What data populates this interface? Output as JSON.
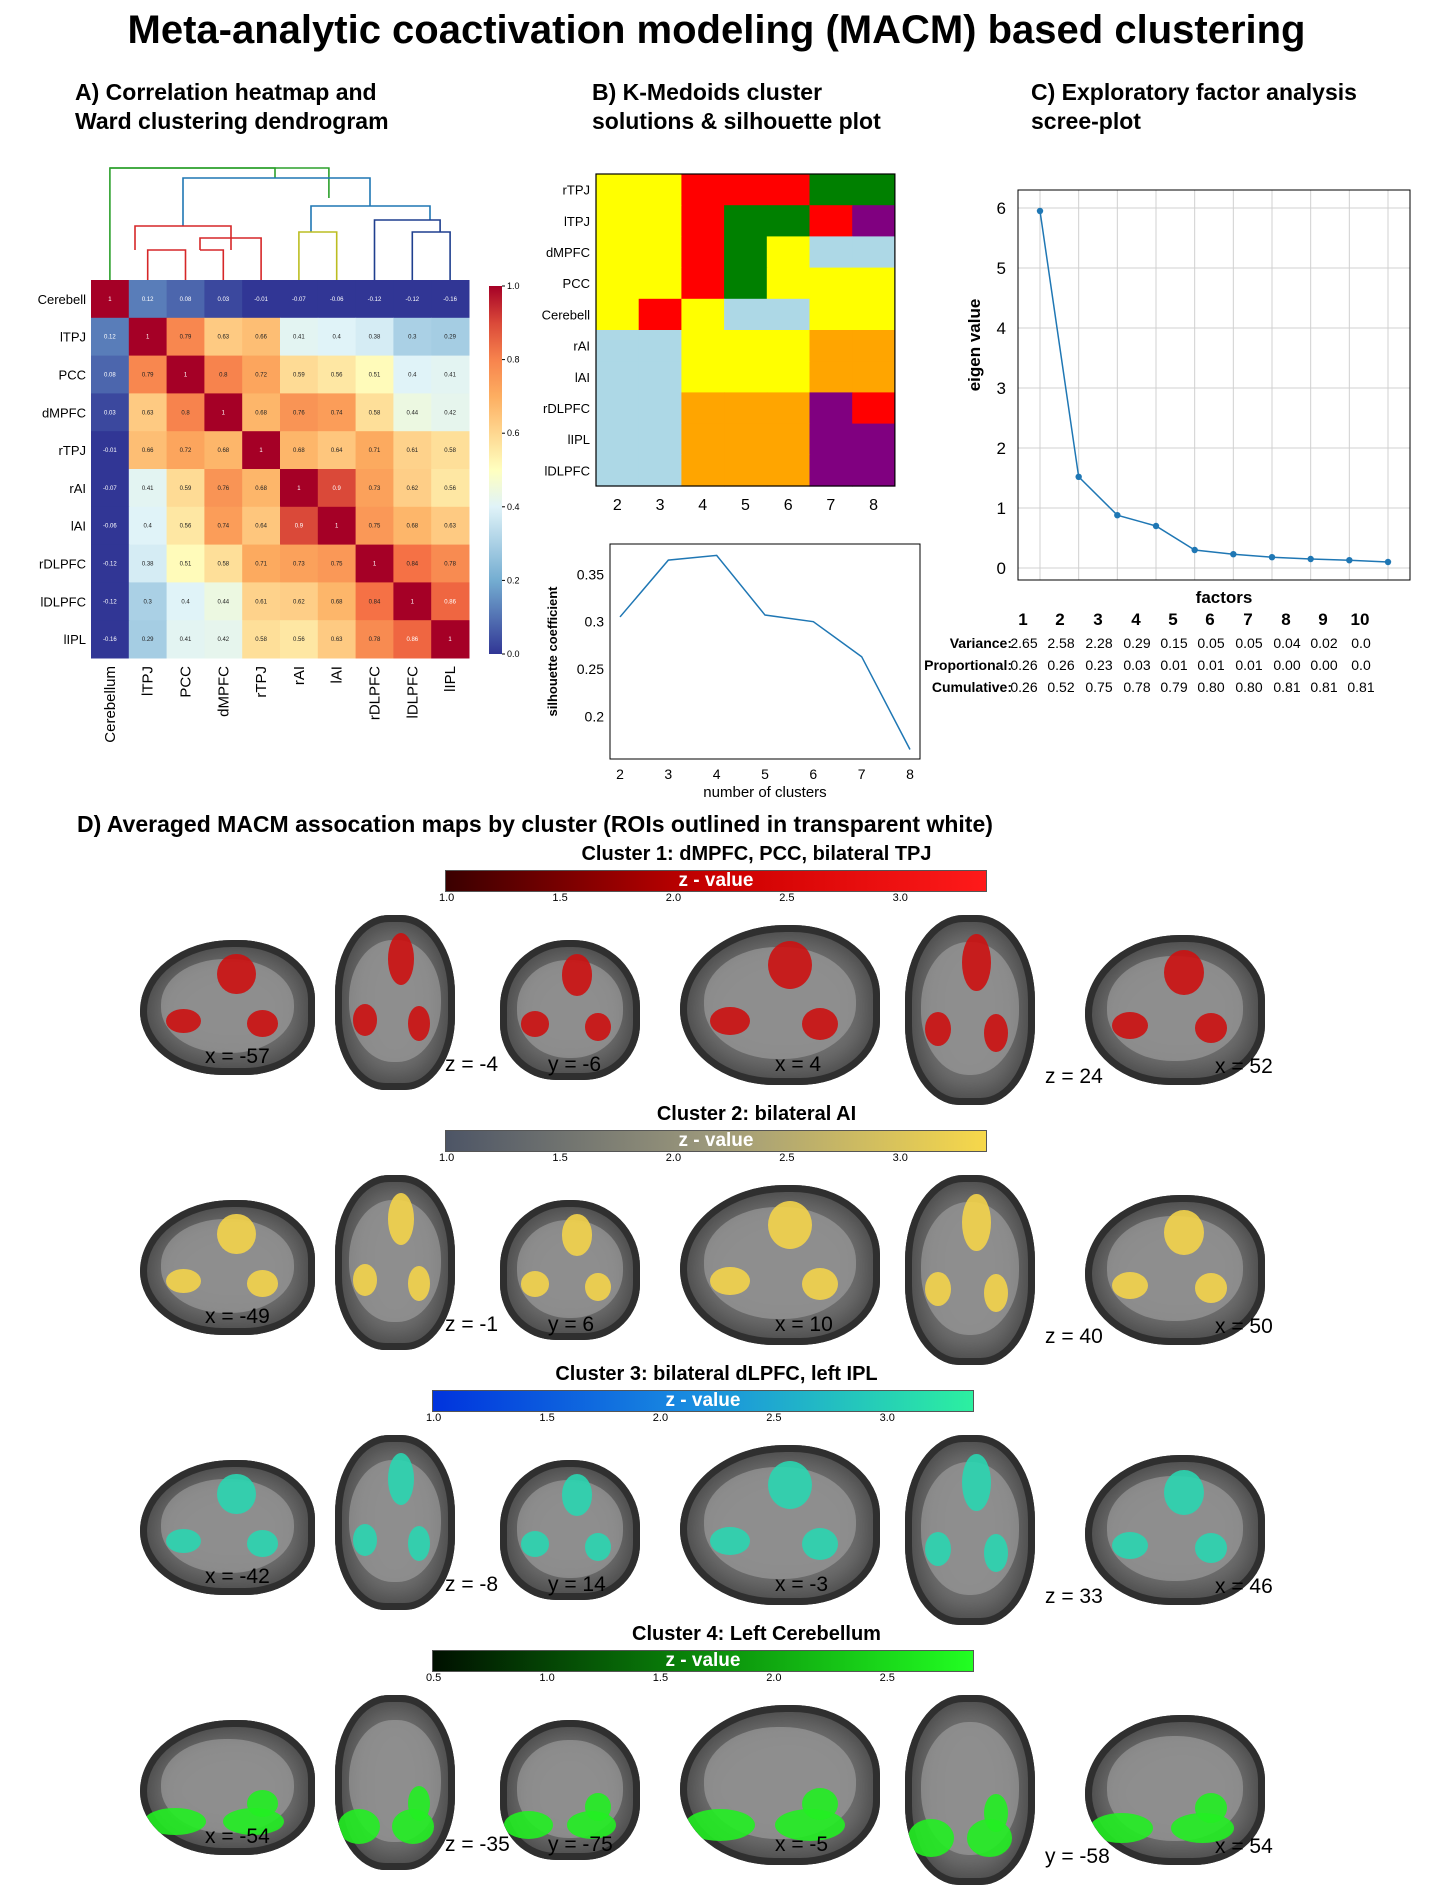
{
  "title": "Meta-analytic coactivation modeling (MACM) based clustering",
  "panelA": {
    "title": "A) Correlation heatmap and\n    Ward clustering dendrogram",
    "row_labels": [
      "Cerebell",
      "lTPJ",
      "PCC",
      "dMPFC",
      "rTPJ",
      "rAI",
      "lAI",
      "rDLPFC",
      "lDLPFC",
      "lIPL"
    ],
    "col_labels": [
      "Cerebellum",
      "lTPJ",
      "PCC",
      "dMPFC",
      "rTPJ",
      "rAI",
      "lAI",
      "rDLPFC",
      "lDLPFC",
      "lIPL"
    ],
    "colorbar_ticks": [
      "1.0",
      "0.8",
      "0.6",
      "0.4",
      "0.2",
      "0.0"
    ],
    "matrix": [
      [
        1,
        0.12,
        0.08,
        0.03,
        -0.01,
        -0.07,
        -0.06,
        -0.12,
        -0.12,
        -0.16
      ],
      [
        0.12,
        1,
        0.79,
        0.63,
        0.66,
        0.41,
        0.4,
        0.38,
        0.3,
        0.29
      ],
      [
        0.08,
        0.79,
        1,
        0.8,
        0.72,
        0.59,
        0.56,
        0.51,
        0.4,
        0.41
      ],
      [
        0.03,
        0.63,
        0.8,
        1,
        0.68,
        0.76,
        0.74,
        0.58,
        0.44,
        0.42
      ],
      [
        -0.01,
        0.66,
        0.72,
        0.68,
        1,
        0.68,
        0.64,
        0.71,
        0.61,
        0.58
      ],
      [
        -0.07,
        0.41,
        0.59,
        0.76,
        0.68,
        1,
        0.9,
        0.73,
        0.62,
        0.56
      ],
      [
        -0.06,
        0.4,
        0.56,
        0.74,
        0.64,
        0.9,
        1,
        0.75,
        0.68,
        0.63
      ],
      [
        -0.12,
        0.38,
        0.51,
        0.58,
        0.71,
        0.73,
        0.75,
        1,
        0.84,
        0.78
      ],
      [
        -0.12,
        0.3,
        0.4,
        0.44,
        0.61,
        0.62,
        0.68,
        0.84,
        1,
        0.86
      ],
      [
        -0.16,
        0.29,
        0.41,
        0.42,
        0.58,
        0.56,
        0.63,
        0.78,
        0.86,
        1
      ]
    ]
  },
  "panelB": {
    "title": "B) K-Medoids cluster\nsolutions & silhouette plot",
    "row_labels": [
      "rTPJ",
      "lTPJ",
      "dMPFC",
      "PCC",
      "Cerebell",
      "rAI",
      "lAI",
      "rDLPFC",
      "lIPL",
      "lDLPFC"
    ],
    "k_values": [
      "2",
      "3",
      "4",
      "5",
      "6",
      "7",
      "8"
    ],
    "colors": {
      "Y": "#ffff00",
      "L": "#add8e6",
      "R": "#ff0000",
      "G": "#008000",
      "O": "#ffa500",
      "P": "#800080"
    },
    "assignments": [
      [
        "Y",
        "Y",
        "R",
        "R",
        "R",
        "G",
        "G"
      ],
      [
        "Y",
        "Y",
        "R",
        "G",
        "G",
        "R",
        "P"
      ],
      [
        "Y",
        "Y",
        "R",
        "G",
        "Y",
        "L",
        "L"
      ],
      [
        "Y",
        "Y",
        "R",
        "G",
        "Y",
        "Y",
        "Y"
      ],
      [
        "Y",
        "R",
        "Y",
        "L",
        "L",
        "Y",
        "Y"
      ],
      [
        "L",
        "L",
        "Y",
        "Y",
        "Y",
        "O",
        "O"
      ],
      [
        "L",
        "L",
        "Y",
        "Y",
        "Y",
        "O",
        "O"
      ],
      [
        "L",
        "L",
        "O",
        "O",
        "O",
        "P",
        "R"
      ],
      [
        "L",
        "L",
        "O",
        "O",
        "O",
        "P",
        "P"
      ],
      [
        "L",
        "L",
        "O",
        "O",
        "O",
        "P",
        "P"
      ]
    ],
    "silhouette": {
      "type": "line",
      "x": [
        2,
        3,
        4,
        5,
        6,
        7,
        8
      ],
      "y": [
        0.305,
        0.365,
        0.37,
        0.307,
        0.3,
        0.263,
        0.165
      ],
      "xlabel": "number of clusters",
      "ylabel": "silhouette coefficient",
      "yticks": [
        "0.35",
        "0.3",
        "0.25",
        "0.2"
      ],
      "ylim": [
        0.155,
        0.382
      ]
    }
  },
  "panelC": {
    "title": "C) Exploratory factor analysis\nscree-plot",
    "chart_data": {
      "type": "line",
      "x": [
        1,
        2,
        3,
        4,
        5,
        6,
        7,
        8,
        9,
        10
      ],
      "y": [
        5.95,
        1.52,
        0.88,
        0.7,
        0.3,
        0.23,
        0.18,
        0.15,
        0.13,
        0.1
      ],
      "xlabel": "factors",
      "ylabel": "eigen value",
      "ylim": [
        -0.2,
        6.3
      ],
      "yticks": [
        "6",
        "5",
        "4",
        "3",
        "2",
        "1",
        "0"
      ],
      "grid": true
    },
    "table": {
      "factors": [
        "1",
        "2",
        "3",
        "4",
        "5",
        "6",
        "7",
        "8",
        "9",
        "10"
      ],
      "rows": [
        {
          "label": "Variance:",
          "values": [
            "2.65",
            "2.58",
            "2.28",
            "0.29",
            "0.15",
            "0.05",
            "0.05",
            "0.04",
            "0.02",
            "0.0"
          ]
        },
        {
          "label": "Proportional:",
          "values": [
            "0.26",
            "0.26",
            "0.23",
            "0.03",
            "0.01",
            "0.01",
            "0.01",
            "0.00",
            "0.00",
            "0.0"
          ]
        },
        {
          "label": "Cumulative:",
          "values": [
            "0.26",
            "0.52",
            "0.75",
            "0.78",
            "0.79",
            "0.80",
            "0.80",
            "0.81",
            "0.81",
            "0.81"
          ]
        }
      ]
    }
  },
  "panelD": {
    "title": "D) Averaged MACM assocation maps by cluster (ROIs outlined in transparent white)",
    "clusters": [
      {
        "title": "Cluster 1: dMPFC, PCC, bilateral TPJ",
        "cbar_label": "z - value",
        "ticks": [
          "1.0",
          "1.5",
          "2.0",
          "2.5",
          "3.0"
        ],
        "grad": [
          "#3a0000",
          "#cc0000",
          "#ff1a1a"
        ],
        "blob": "#cc1111",
        "coords": [
          "x = -57",
          "z = -4",
          "y = -6",
          "x = 4",
          "z = 24",
          "x = 52"
        ]
      },
      {
        "title": "Cluster 2: bilateral AI",
        "cbar_label": "z - value",
        "ticks": [
          "1.0",
          "1.5",
          "2.0",
          "2.5",
          "3.0"
        ],
        "grad": [
          "#4d5566",
          "#9e9a7c",
          "#f7d84a"
        ],
        "blob": "#f3d34a",
        "coords": [
          "x = -49",
          "z = -1",
          "y = 6",
          "x = 10",
          "z = 40",
          "x = 50"
        ]
      },
      {
        "title": "Cluster 3: bilateral dLPFC, left IPL",
        "cbar_label": "z - value",
        "ticks": [
          "1.0",
          "1.5",
          "2.0",
          "2.5",
          "3.0"
        ],
        "grad": [
          "#0033dd",
          "#1a90e0",
          "#2cf0a0"
        ],
        "blob": "#2ad5b0",
        "coords": [
          "x = -42",
          "z = -8",
          "y = 14",
          "x = -3",
          "z = 33",
          "x = 46"
        ]
      },
      {
        "title": "Cluster 4: Left Cerebellum",
        "cbar_label": "z - value",
        "ticks": [
          "0.5",
          "1.0",
          "1.5",
          "2.0",
          "2.5"
        ],
        "grad": [
          "#001000",
          "#0a8a0a",
          "#22ff22"
        ],
        "blob": "#22ee22",
        "coords": [
          "x = -54",
          "z = -35",
          "y = -75",
          "x = -5",
          "y = -58",
          "x = 54"
        ]
      }
    ]
  }
}
